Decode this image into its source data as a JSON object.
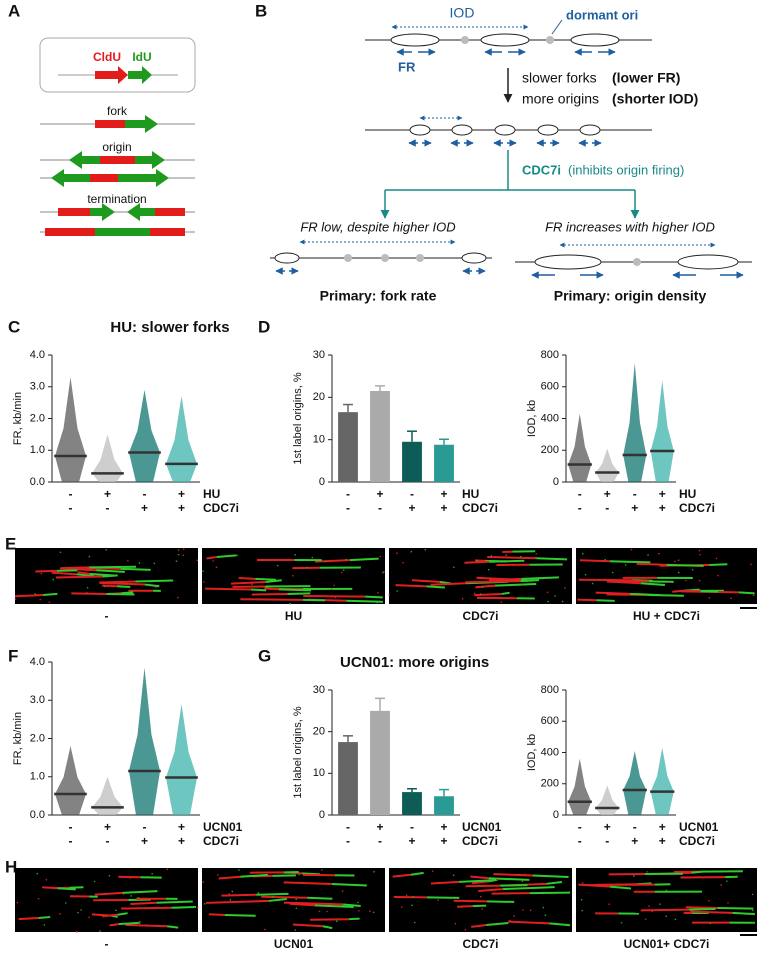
{
  "figure": {
    "panel_labels": [
      "A",
      "B",
      "C",
      "D",
      "E",
      "F",
      "G",
      "H"
    ],
    "panel_a": {
      "cldu": "CldU",
      "idu": "IdU",
      "fork": "fork",
      "origin": "origin",
      "termination": "termination"
    },
    "panel_b": {
      "iod": "IOD",
      "dormant_ori": "dormant ori",
      "fr": "FR",
      "line1": "slower forks",
      "line1_bold": "(lower FR)",
      "line2": "more origins",
      "line2_bold": "(shorter IOD)",
      "cdc7i": "CDC7i",
      "cdc7i_note": "(inhibits origin firing)",
      "left_note": "FR low, despite higher IOD",
      "right_note": "FR increases with higher IOD",
      "left_result": "Primary: fork rate",
      "right_result": "Primary: origin density"
    },
    "panel_e": [
      "-",
      "HU",
      "CDC7i",
      "HU + CDC7i"
    ],
    "panel_h": [
      "-",
      "UCN01",
      "CDC7i",
      "UCN01+ CDC7i"
    ]
  },
  "chart_data": [
    {
      "type": "dot",
      "title": "HU: slower forks",
      "y_label": "FR, kb/min",
      "conditions": [
        {
          "name": "HU",
          "values": [
            "-",
            "+",
            "-",
            "+"
          ]
        },
        {
          "name": "CDC7i",
          "values": [
            "-",
            "-",
            "+",
            "+"
          ]
        }
      ],
      "medians": [
        0.82,
        0.27,
        0.93,
        0.57
      ],
      "max": [
        3.3,
        1.5,
        2.9,
        2.7
      ],
      "colors": [
        "#5a5a5a",
        "#bdbdbd",
        "#0f7470",
        "#3db3ac"
      ],
      "median_color": "#333333",
      "ylim": [
        0,
        4
      ],
      "yticks": [
        {
          "value": 0,
          "label": "0.0"
        },
        {
          "value": 1,
          "label": "1.0"
        },
        {
          "value": 2,
          "label": "2.0"
        },
        {
          "value": 3,
          "label": "3.0"
        },
        {
          "value": 4,
          "label": "4.0"
        }
      ]
    },
    {
      "type": "bar",
      "y_label": "1st label origins, %",
      "conditions": [
        {
          "name": "HU",
          "values": [
            "-",
            "+",
            "-",
            "+"
          ]
        },
        {
          "name": "CDC7i",
          "values": [
            "-",
            "-",
            "+",
            "+"
          ]
        }
      ],
      "values": [
        16.5,
        21.5,
        9.5,
        8.8
      ],
      "errors": [
        1.8,
        1.2,
        2.5,
        1.3
      ],
      "colors": [
        "#666666",
        "#aaaaaa",
        "#0d5c57",
        "#2a9a94"
      ],
      "ylim": [
        0,
        30
      ],
      "yticks": [
        0,
        10,
        20,
        30
      ]
    },
    {
      "type": "dot",
      "y_label": "IOD, kb",
      "conditions": [
        {
          "name": "HU",
          "values": [
            "-",
            "+",
            "-",
            "+"
          ]
        },
        {
          "name": "CDC7i",
          "values": [
            "-",
            "-",
            "+",
            "+"
          ]
        }
      ],
      "medians": [
        110,
        60,
        170,
        195
      ],
      "max": [
        430,
        210,
        750,
        640
      ],
      "colors": [
        "#5a5a5a",
        "#bdbdbd",
        "#0f7470",
        "#3db3ac"
      ],
      "median_color": "#333333",
      "ylim": [
        0,
        800
      ],
      "yticks": [
        0,
        200,
        400,
        600,
        800
      ]
    },
    {
      "type": "dot",
      "y_label": "FR, kb/min",
      "conditions": [
        {
          "name": "UCN01",
          "values": [
            "-",
            "+",
            "-",
            "+"
          ]
        },
        {
          "name": "CDC7i",
          "values": [
            "-",
            "-",
            "+",
            "+"
          ]
        }
      ],
      "medians": [
        0.55,
        0.2,
        1.15,
        0.98
      ],
      "max": [
        1.8,
        1.0,
        3.85,
        2.9
      ],
      "colors": [
        "#5a5a5a",
        "#bdbdbd",
        "#0f7470",
        "#3db3ac"
      ],
      "median_color": "#333333",
      "ylim": [
        0,
        4
      ],
      "yticks": [
        {
          "value": 0,
          "label": "0.0"
        },
        {
          "value": 1,
          "label": "1.0"
        },
        {
          "value": 2,
          "label": "2.0"
        },
        {
          "value": 3,
          "label": "3.0"
        },
        {
          "value": 4,
          "label": "4.0"
        }
      ]
    },
    {
      "type": "bar",
      "title": "UCN01: more origins",
      "y_label": "1st label origins, %",
      "conditions": [
        {
          "name": "UCN01",
          "values": [
            "-",
            "+",
            "-",
            "+"
          ]
        },
        {
          "name": "CDC7i",
          "values": [
            "-",
            "-",
            "+",
            "+"
          ]
        }
      ],
      "values": [
        17.5,
        25,
        5.5,
        4.5
      ],
      "errors": [
        1.5,
        3,
        0.8,
        1.6
      ],
      "colors": [
        "#666666",
        "#aaaaaa",
        "#0d5c57",
        "#2a9a94"
      ],
      "ylim": [
        0,
        30
      ],
      "yticks": [
        0,
        10,
        20,
        30
      ]
    },
    {
      "type": "dot",
      "y_label": "IOD, kb",
      "conditions": [
        {
          "name": "UCN01",
          "values": [
            "-",
            "+",
            "-",
            "+"
          ]
        },
        {
          "name": "CDC7i",
          "values": [
            "-",
            "-",
            "+",
            "+"
          ]
        }
      ],
      "medians": [
        85,
        45,
        160,
        150
      ],
      "max": [
        360,
        190,
        410,
        430
      ],
      "colors": [
        "#5a5a5a",
        "#bdbdbd",
        "#0f7470",
        "#3db3ac"
      ],
      "median_color": "#333333",
      "ylim": [
        0,
        800
      ],
      "yticks": [
        0,
        200,
        400,
        600,
        800
      ]
    }
  ]
}
